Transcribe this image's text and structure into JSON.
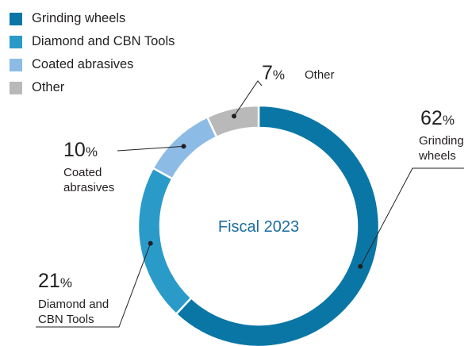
{
  "chart_data": {
    "type": "pie",
    "donut": true,
    "center_label": "Fiscal 2023",
    "percent_symbol": "%",
    "slices": [
      {
        "name": "Grinding wheels",
        "value": 62,
        "color": "#0a76a6",
        "label_lines": [
          "Grinding",
          "wheels"
        ]
      },
      {
        "name": "Diamond and CBN Tools",
        "value": 21,
        "color": "#2a9bc9",
        "label_lines": [
          "Diamond and",
          "CBN Tools"
        ]
      },
      {
        "name": "Coated abrasives",
        "value": 10,
        "color": "#8cbbe6",
        "label_lines": [
          "Coated",
          "abrasives"
        ]
      },
      {
        "name": "Other",
        "value": 7,
        "color": "#b9b9b9",
        "label_lines": [
          "Other"
        ]
      }
    ],
    "legend": {
      "position": "top-left",
      "entries": [
        "Grinding wheels",
        "Diamond and CBN Tools",
        "Coated abrasives",
        "Other"
      ]
    }
  }
}
